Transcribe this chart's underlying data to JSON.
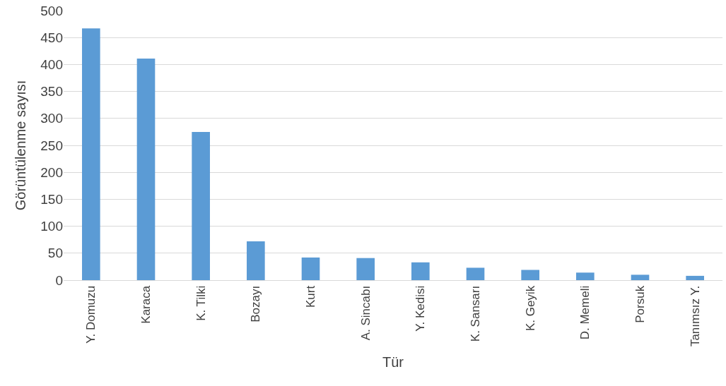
{
  "chart_data": {
    "type": "bar",
    "xlabel": "Tür",
    "ylabel": "Görüntülenme sayısı",
    "categories": [
      "Y. Domuzu",
      "Karaca",
      "K. Tilki",
      "Bozayı",
      "Kurt",
      "A. Sincabı",
      "Y. Kedisi",
      "K. Sansarı",
      "K. Geyik",
      "D. Memeli",
      "Porsuk",
      "Tanımsız Y."
    ],
    "values": [
      467,
      411,
      275,
      72,
      42,
      41,
      33,
      23,
      19,
      14,
      10,
      8
    ],
    "color": "#5b9bd5",
    "ylim": [
      0,
      500
    ],
    "yticks": [
      0,
      50,
      100,
      150,
      200,
      250,
      300,
      350,
      400,
      450,
      500
    ],
    "grid": "y"
  }
}
